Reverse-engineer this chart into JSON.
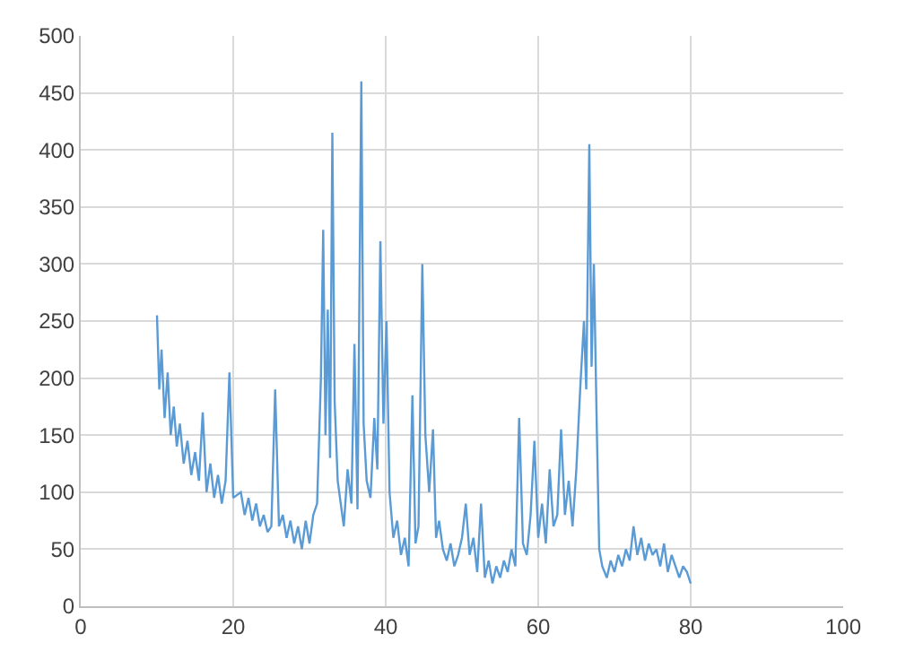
{
  "chart_data": {
    "type": "line",
    "x": [
      10,
      10.3,
      10.6,
      11,
      11.4,
      11.8,
      12.2,
      12.6,
      13,
      13.5,
      14,
      14.5,
      15,
      15.5,
      16,
      16.5,
      17,
      17.5,
      18,
      18.5,
      19,
      19.5,
      20,
      21,
      21.5,
      22,
      22.5,
      23,
      23.5,
      24,
      24.5,
      25,
      25.5,
      26,
      26.5,
      27,
      27.5,
      28,
      28.5,
      29,
      29.5,
      30,
      30.5,
      31,
      31.5,
      31.8,
      32.1,
      32.4,
      32.7,
      33,
      33.3,
      33.7,
      34,
      34.5,
      35,
      35.5,
      35.9,
      36.3,
      36.8,
      37.1,
      37.5,
      38,
      38.5,
      38.9,
      39.3,
      39.7,
      40.1,
      40.5,
      41,
      41.5,
      42,
      42.5,
      43,
      43.5,
      43.9,
      44.3,
      44.8,
      45.2,
      45.7,
      46.2,
      46.6,
      47,
      47.5,
      48,
      48.5,
      49,
      49.5,
      50,
      50.5,
      51,
      51.5,
      52,
      52.5,
      53,
      53.5,
      54,
      54.5,
      55,
      55.5,
      56,
      56.5,
      57,
      57.5,
      58,
      58.5,
      59,
      59.5,
      60,
      60.5,
      61,
      61.5,
      62,
      62.5,
      63,
      63.5,
      64,
      64.5,
      65,
      65.5,
      66,
      66.3,
      66.7,
      67,
      67.3,
      67.7,
      68,
      68.4,
      69,
      69.5,
      70,
      70.5,
      71,
      71.5,
      72,
      72.5,
      73,
      73.5,
      74,
      74.5,
      75,
      75.5,
      76,
      76.5,
      77,
      77.5,
      78,
      78.5,
      79,
      79.5,
      80
    ],
    "values": [
      255,
      190,
      225,
      165,
      205,
      150,
      175,
      140,
      160,
      125,
      145,
      115,
      135,
      110,
      170,
      100,
      125,
      95,
      115,
      90,
      110,
      205,
      95,
      100,
      80,
      95,
      75,
      90,
      70,
      80,
      65,
      70,
      190,
      70,
      80,
      60,
      75,
      55,
      70,
      50,
      75,
      55,
      80,
      90,
      200,
      330,
      150,
      260,
      130,
      415,
      180,
      110,
      95,
      70,
      120,
      90,
      230,
      85,
      460,
      160,
      110,
      95,
      165,
      120,
      320,
      160,
      250,
      100,
      60,
      75,
      45,
      60,
      35,
      185,
      55,
      70,
      300,
      150,
      100,
      155,
      60,
      75,
      50,
      40,
      55,
      35,
      45,
      60,
      90,
      45,
      60,
      30,
      90,
      25,
      40,
      20,
      35,
      25,
      40,
      30,
      50,
      35,
      165,
      55,
      45,
      80,
      145,
      60,
      90,
      55,
      120,
      70,
      80,
      155,
      80,
      110,
      70,
      120,
      190,
      250,
      190,
      405,
      210,
      300,
      150,
      50,
      35,
      25,
      40,
      30,
      45,
      35,
      50,
      40,
      70,
      45,
      60,
      40,
      55,
      45,
      50,
      35,
      55,
      30,
      45,
      35,
      25,
      35,
      30,
      20
    ],
    "color": "#5b9bd5",
    "xlim": [
      0,
      100
    ],
    "xticks": [
      0,
      20,
      40,
      60,
      80,
      100
    ],
    "ylim": [
      0,
      500
    ],
    "yticks": [
      0,
      50,
      100,
      150,
      200,
      250,
      300,
      350,
      400,
      450,
      500
    ],
    "grid": true
  }
}
